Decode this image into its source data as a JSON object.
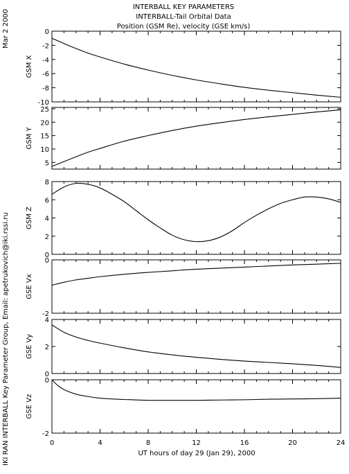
{
  "header": {
    "title": "INTERBALL KEY PARAMETERS",
    "subtitle": "INTERBALL-Tail Orbital Data",
    "subtitle2": "Position (GSM Re), velocity (GSE km/s)"
  },
  "side": {
    "date": "Mar  2 2000",
    "credit": "IKI RAN INTERBALL Key Parameter Group, Email: apetrukovich@iki.rssi.ru"
  },
  "chart_data": [
    {
      "type": "line",
      "ylabel": "GSM X",
      "xlim": [
        0,
        24
      ],
      "ylim": [
        -10,
        0
      ],
      "yticks": [
        "0",
        "-2",
        "-4",
        "-6",
        "-8",
        "-10"
      ],
      "ytick_values": [
        0,
        -2,
        -4,
        -6,
        -8,
        -10
      ],
      "x": [
        0,
        1,
        2,
        3,
        4,
        6,
        8,
        10,
        12,
        14,
        16,
        18,
        20,
        22,
        24
      ],
      "y": [
        -1.0,
        -1.75,
        -2.45,
        -3.1,
        -3.65,
        -4.65,
        -5.5,
        -6.25,
        -6.9,
        -7.45,
        -7.95,
        -8.35,
        -8.7,
        -9.05,
        -9.35
      ]
    },
    {
      "type": "line",
      "ylabel": "GSM Y",
      "xlim": [
        0,
        24
      ],
      "ylim": [
        2.5,
        25.5
      ],
      "yticks": [
        "25",
        "20",
        "15",
        "10",
        "5"
      ],
      "ytick_values": [
        25,
        20,
        15,
        10,
        5
      ],
      "x": [
        0,
        1,
        2,
        3,
        4,
        6,
        8,
        10,
        12,
        14,
        16,
        18,
        20,
        22,
        24
      ],
      "y": [
        3.5,
        5.3,
        7.1,
        8.8,
        10.2,
        12.9,
        15.0,
        16.9,
        18.5,
        19.8,
        21.0,
        22.0,
        22.9,
        23.8,
        24.6
      ]
    },
    {
      "type": "line",
      "ylabel": "GSM Z",
      "xlim": [
        0,
        24
      ],
      "ylim": [
        0,
        8
      ],
      "yticks": [
        "8",
        "6",
        "4",
        "2",
        "0"
      ],
      "ytick_values": [
        8,
        6,
        4,
        2,
        0
      ],
      "x": [
        0,
        1,
        2,
        3,
        4,
        5,
        6,
        7,
        8,
        9,
        10,
        11,
        12,
        13,
        14,
        15,
        16,
        17,
        18,
        19,
        20,
        21,
        22,
        23,
        24
      ],
      "y": [
        6.6,
        7.4,
        7.8,
        7.7,
        7.3,
        6.6,
        5.8,
        4.8,
        3.8,
        2.9,
        2.1,
        1.6,
        1.4,
        1.5,
        1.9,
        2.6,
        3.5,
        4.3,
        5.0,
        5.6,
        6.0,
        6.3,
        6.3,
        6.1,
        5.7
      ]
    },
    {
      "type": "line",
      "ylabel": "GSE Vx",
      "xlim": [
        0,
        24
      ],
      "ylim": [
        -2,
        0
      ],
      "yticks": [
        "0",
        "-2"
      ],
      "ytick_values": [
        0,
        -2
      ],
      "x": [
        0,
        1,
        2,
        3,
        4,
        6,
        8,
        10,
        12,
        14,
        16,
        18,
        20,
        22,
        24
      ],
      "y": [
        -0.95,
        -0.84,
        -0.75,
        -0.69,
        -0.63,
        -0.54,
        -0.47,
        -0.41,
        -0.35,
        -0.31,
        -0.27,
        -0.23,
        -0.19,
        -0.16,
        -0.13
      ]
    },
    {
      "type": "line",
      "ylabel": "GSE Vy",
      "xlim": [
        0,
        24
      ],
      "ylim": [
        0,
        4
      ],
      "yticks": [
        "4",
        "2",
        "0"
      ],
      "ytick_values": [
        4,
        2,
        0
      ],
      "x": [
        0,
        1,
        2,
        3,
        4,
        6,
        8,
        10,
        12,
        14,
        16,
        18,
        20,
        22,
        24
      ],
      "y": [
        3.6,
        3.05,
        2.7,
        2.45,
        2.25,
        1.9,
        1.6,
        1.38,
        1.2,
        1.05,
        0.92,
        0.82,
        0.72,
        0.6,
        0.45
      ]
    },
    {
      "type": "line",
      "ylabel": "GSE Vz",
      "xlim": [
        0,
        24
      ],
      "ylim": [
        -2,
        0
      ],
      "yticks": [
        "0",
        "-2"
      ],
      "ytick_values": [
        0,
        -2
      ],
      "x": [
        0,
        0.5,
        1,
        2,
        3,
        4,
        5,
        6,
        8,
        10,
        12,
        14,
        16,
        18,
        20,
        22,
        24
      ],
      "y": [
        0.0,
        -0.22,
        -0.37,
        -0.54,
        -0.63,
        -0.69,
        -0.72,
        -0.74,
        -0.77,
        -0.77,
        -0.77,
        -0.76,
        -0.75,
        -0.73,
        -0.72,
        -0.71,
        -0.69
      ]
    }
  ],
  "xaxis": {
    "label": "UT hours of day  29 (Jan 29), 2000",
    "ticks": [
      "0",
      "4",
      "8",
      "12",
      "16",
      "20",
      "24"
    ],
    "tick_values": [
      0,
      4,
      8,
      12,
      16,
      20,
      24
    ]
  }
}
